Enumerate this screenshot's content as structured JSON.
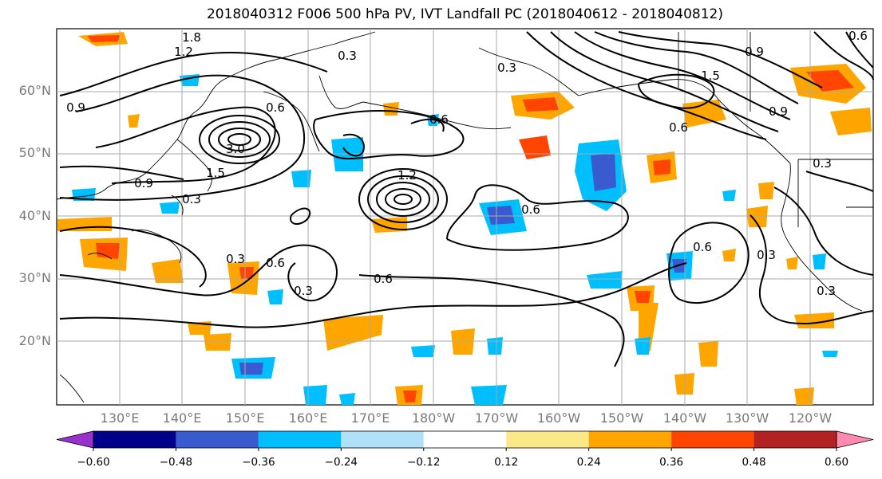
{
  "title": "2018040312 F006 500 hPa PV, IVT Landfall PC (2018040612 - 2018040812)",
  "lat_labels": [
    "60°N",
    "50°N",
    "40°N",
    "30°N",
    "20°N"
  ],
  "lon_labels": [
    "130°E",
    "140°E",
    "150°E",
    "160°E",
    "170°E",
    "180°W",
    "170°W",
    "160°W",
    "150°W",
    "140°W",
    "130°W",
    "120°W"
  ],
  "contour_labels": [
    "1.8",
    "1.2",
    "0.9",
    "0.6",
    "0.3",
    "3.0",
    "1.5",
    "0.3",
    "0.6",
    "1.2",
    "0.9",
    "0.6",
    "0.6",
    "0.3",
    "0.6",
    "0.3",
    "0.9",
    "0.3",
    "0.3",
    "0.6",
    "1.5",
    "0.6",
    "0.9",
    "0.3",
    "0.6",
    "0.3"
  ],
  "colorbar": {
    "ticks": [
      "−0.60",
      "−0.48",
      "−0.36",
      "−0.24",
      "−0.12",
      "0.12",
      "0.24",
      "0.36",
      "0.48",
      "0.60"
    ],
    "colors": [
      "#9932cc",
      "#00008b",
      "#3a5bd0",
      "#00bfff",
      "#b0e0fa",
      "#ffffff",
      "#fde888",
      "#ffa500",
      "#ff4500",
      "#b22222",
      "#ff8ab0"
    ]
  }
}
